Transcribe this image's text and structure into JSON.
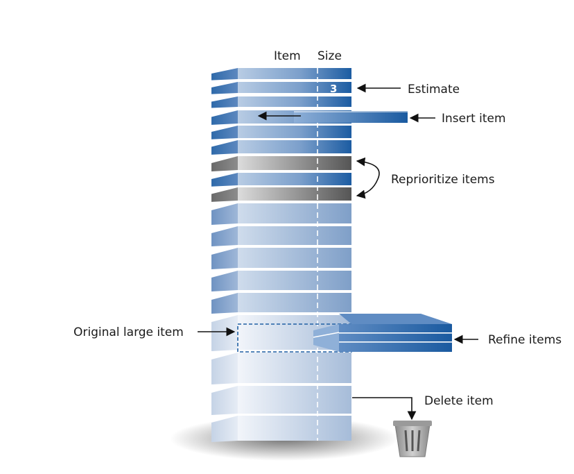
{
  "header": {
    "item_label": "Item",
    "size_label": "Size"
  },
  "estimate_value": "3",
  "annotations": {
    "estimate": "Estimate",
    "insert": "Insert item",
    "reprioritize": "Reprioritize items",
    "original": "Original large item",
    "refine": "Refine items",
    "delete": "Delete item"
  },
  "colors": {
    "dark_blue": "#1f5fa3",
    "light_blue": "#c9d8ea",
    "pale_blue": "#e8eef6",
    "gray_dark": "#5a5a5a",
    "gray_light": "#d4d4d4"
  }
}
